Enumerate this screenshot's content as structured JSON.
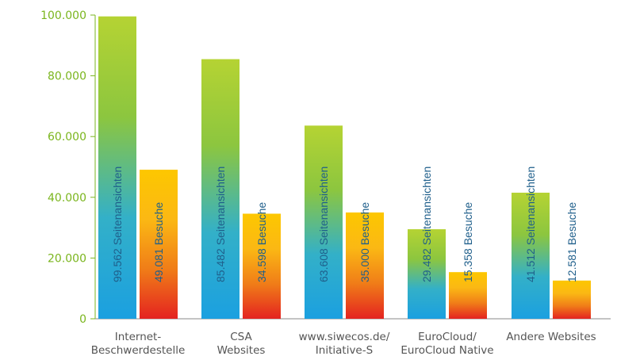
{
  "chart_data": {
    "type": "bar",
    "categories": [
      [
        "Internet-",
        "Beschwerdestelle"
      ],
      [
        "CSA",
        "Websites"
      ],
      [
        "www.siwecos.de/",
        "Initiative-S"
      ],
      [
        "EuroCloud/",
        "EuroCloud Native"
      ],
      [
        "Andere Websites"
      ]
    ],
    "series": [
      {
        "name": "Seitenansichten",
        "values": [
          99562,
          85482,
          63608,
          29482,
          41512
        ],
        "labels": [
          "99.562 Seitenansichten",
          "85.482 Seitenansichten",
          "63.608 Seitenansichten",
          "29.482 Seitenansichten",
          "41.512 Seitenansichten"
        ]
      },
      {
        "name": "Besuche",
        "values": [
          49081,
          34598,
          35000,
          15358,
          12581
        ],
        "labels": [
          "49.081 Besuche",
          "34.598 Besuche",
          "35.000 Besuche",
          "15.358 Besuche",
          "12.581 Besuche"
        ]
      }
    ],
    "ylim": [
      0,
      100000
    ],
    "yticks": [
      0,
      20000,
      40000,
      60000,
      80000,
      100000
    ],
    "ytick_labels": [
      "0",
      "20.000",
      "40.000",
      "60.000",
      "80.000",
      "100.000"
    ],
    "grid": false,
    "colors": {
      "axis": "#7ab51d",
      "tick_text": "#7ab51d",
      "category_text": "#555555",
      "bar_label_text": "#1f5f8b",
      "gradient_views": [
        "#1ba0e0",
        "#33b0c8",
        "#8cc63f",
        "#b5d333"
      ],
      "gradient_visits": [
        "#e42320",
        "#f07d18",
        "#fbb814",
        "#fdc700"
      ]
    }
  }
}
